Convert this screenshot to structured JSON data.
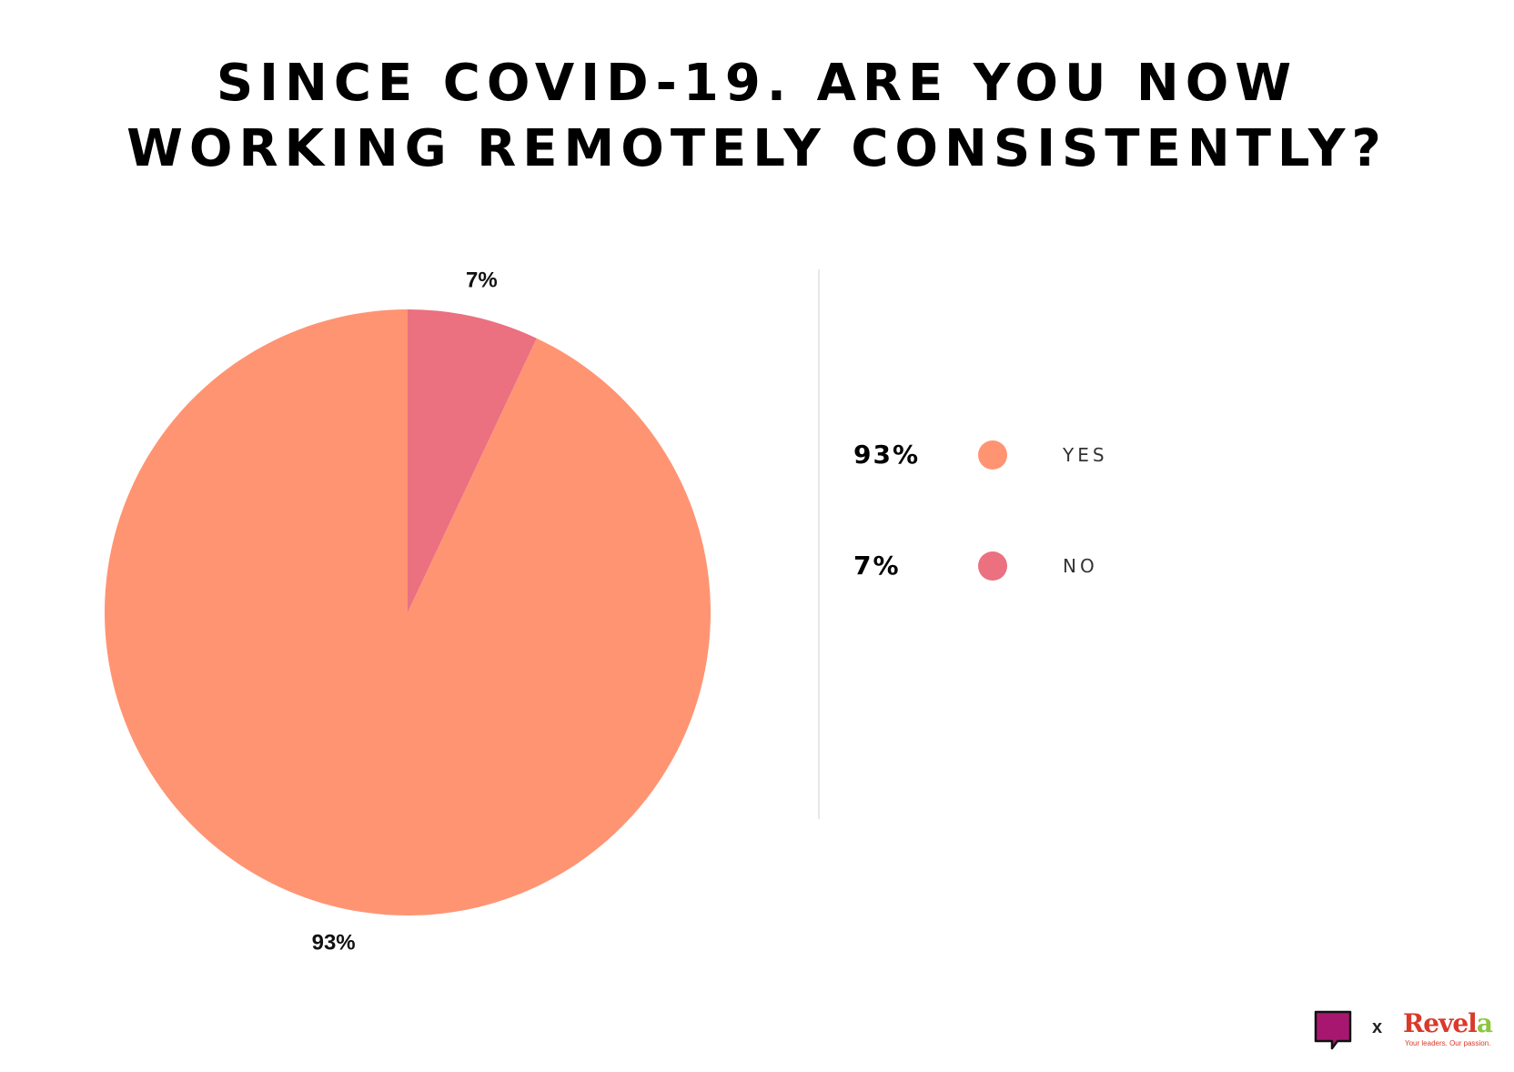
{
  "chart_data": {
    "type": "pie",
    "title_lines": [
      "SINCE COVID-19. ARE YOU NOW",
      "WORKING REMOTELY CONSISTENTLY?"
    ],
    "slices": [
      {
        "label": "YES",
        "value": 93,
        "value_label": "93%",
        "color": "#ff9473"
      },
      {
        "label": "NO",
        "value": 7,
        "value_label": "7%",
        "color": "#eb7080"
      }
    ],
    "legend_placement": "right"
  },
  "footer": {
    "logo_x": "x",
    "revela_main": "Revel",
    "revela_accent": "a",
    "revela_tagline": "Your leaders. Our passion.",
    "chat_logo_color": "#a8176f",
    "chat_logo_icon": "speech-bubble-icon"
  }
}
